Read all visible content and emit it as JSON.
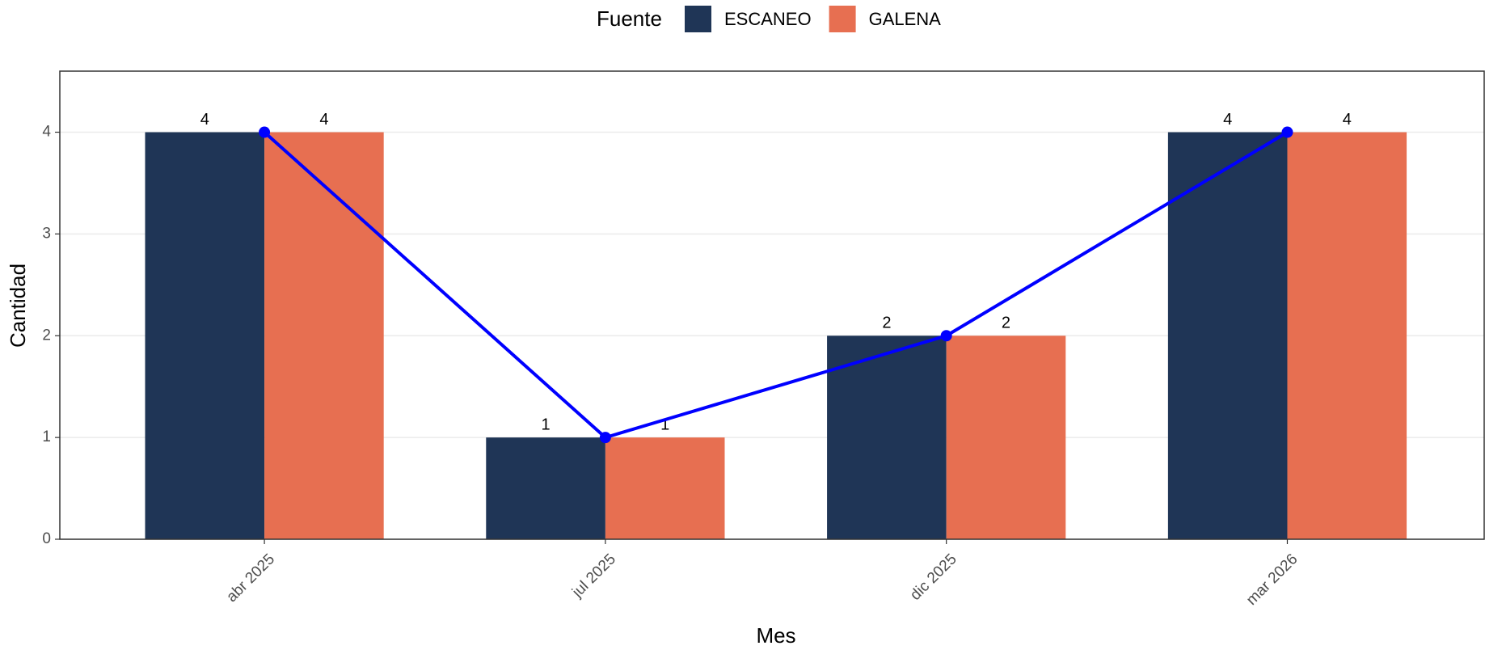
{
  "chart_data": {
    "type": "bar",
    "x_label": "Mes",
    "y_label": "Cantidad",
    "legend_title": "Fuente",
    "categories": [
      "abr 2025",
      "jul 2025",
      "dic 2025",
      "mar 2026"
    ],
    "series": [
      {
        "name": "ESCANEO",
        "color": "#1f3556",
        "values": [
          4,
          1,
          2,
          4
        ]
      },
      {
        "name": "GALENA",
        "color": "#e76f51",
        "values": [
          4,
          1,
          2,
          4
        ]
      }
    ],
    "line": {
      "color": "#0000ff",
      "values": [
        4,
        1,
        2,
        4
      ]
    },
    "ylim": [
      0,
      4.6
    ],
    "yticks": [
      0,
      1,
      2,
      3,
      4
    ],
    "grid": true,
    "legend_position": "top"
  }
}
